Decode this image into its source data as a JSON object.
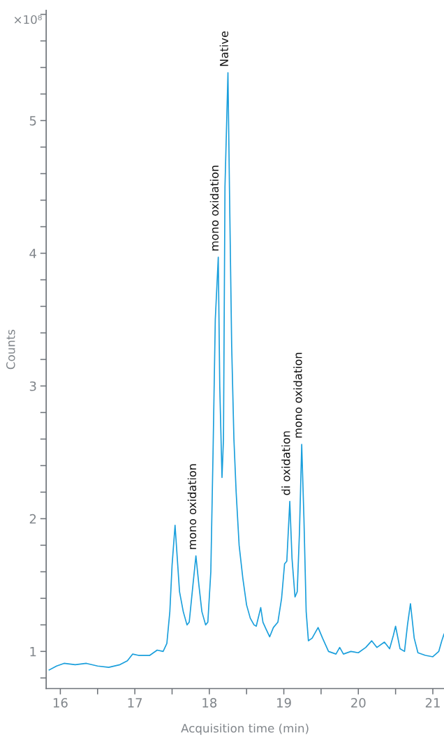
{
  "chart_data": {
    "type": "line",
    "xlabel": "Acquisition time (min)",
    "ylabel": "Counts",
    "xlim": [
      15.81,
      21.15
    ],
    "ylim": [
      0.72,
      5.83
    ],
    "xticks": [
      16,
      {
        "value": 16.5,
        "label": null
      },
      17,
      {
        "value": 17.5,
        "label": null
      },
      18,
      {
        "value": 18.5,
        "label": null
      },
      19,
      {
        "value": 19.5,
        "label": null
      },
      20,
      {
        "value": 20.5,
        "label": null
      },
      21
    ],
    "yticks": [
      {
        "value": 0.8,
        "label": null
      },
      1,
      {
        "value": 1.2,
        "label": null
      },
      {
        "value": 1.4,
        "label": null
      },
      {
        "value": 1.6,
        "label": null
      },
      {
        "value": 1.8,
        "label": null
      },
      2,
      {
        "value": 2.2,
        "label": null
      },
      {
        "value": 2.4,
        "label": null
      },
      {
        "value": 2.6,
        "label": null
      },
      {
        "value": 2.8,
        "label": null
      },
      3,
      {
        "value": 3.2,
        "label": null
      },
      {
        "value": 3.4,
        "label": null
      },
      {
        "value": 3.6,
        "label": null
      },
      {
        "value": 3.8,
        "label": null
      },
      4,
      {
        "value": 4.2,
        "label": null
      },
      {
        "value": 4.4,
        "label": null
      },
      {
        "value": 4.6,
        "label": null
      },
      {
        "value": 4.8,
        "label": null
      },
      5,
      {
        "value": 5.2,
        "label": null
      },
      {
        "value": 5.4,
        "label": null
      },
      {
        "value": 5.6,
        "label": null
      },
      {
        "value": 5.8,
        "label": null
      }
    ],
    "grid": false,
    "legend": false,
    "marker": "none",
    "line_style": "solid",
    "annotations": [
      "×10⁸",
      {
        "text": "mono oxidation",
        "x": 17.82,
        "y": 1.72
      },
      {
        "text": "mono oxidation",
        "x": 18.12,
        "y": 3.97
      },
      {
        "text": "Native",
        "x": 18.25,
        "y": 5.36
      },
      {
        "text": "di oxidation",
        "x": 19.08,
        "y": 2.13
      },
      {
        "text": "mono oxidation",
        "x": 19.24,
        "y": 2.56
      }
    ],
    "series": [
      {
        "color": "#1a9fdc",
        "x": [
          15.85,
          15.95,
          16.05,
          16.2,
          16.35,
          16.5,
          16.65,
          16.8,
          16.9,
          16.97,
          17.05,
          17.2,
          17.3,
          17.38,
          17.43,
          17.47,
          17.5,
          17.54,
          17.57,
          17.6,
          17.65,
          17.7,
          17.73,
          17.78,
          17.82,
          17.86,
          17.9,
          17.95,
          17.98,
          18.02,
          18.05,
          18.08,
          18.12,
          18.14,
          18.17,
          18.19,
          18.21,
          18.25,
          18.27,
          18.3,
          18.33,
          18.36,
          18.4,
          18.45,
          18.5,
          18.55,
          18.6,
          18.63,
          18.69,
          18.72,
          18.76,
          18.81,
          18.86,
          18.92,
          18.97,
          19.01,
          19.04,
          19.08,
          19.11,
          19.15,
          19.18,
          19.21,
          19.24,
          19.27,
          19.3,
          19.33,
          19.38,
          19.46,
          19.52,
          19.6,
          19.7,
          19.75,
          19.8,
          19.9,
          20.0,
          20.1,
          20.18,
          20.25,
          20.35,
          20.42,
          20.47,
          20.5,
          20.56,
          20.62,
          20.66,
          20.7,
          20.75,
          20.8,
          20.9,
          21.0,
          21.08,
          21.12,
          21.15
        ],
        "values": [
          0.86,
          0.89,
          0.91,
          0.9,
          0.91,
          0.89,
          0.88,
          0.9,
          0.93,
          0.98,
          0.97,
          0.97,
          1.01,
          1.0,
          1.06,
          1.3,
          1.65,
          1.95,
          1.7,
          1.45,
          1.3,
          1.2,
          1.22,
          1.5,
          1.72,
          1.5,
          1.3,
          1.2,
          1.22,
          1.6,
          2.5,
          3.5,
          3.97,
          3.0,
          2.31,
          2.6,
          4.5,
          5.36,
          4.5,
          3.3,
          2.6,
          2.2,
          1.8,
          1.55,
          1.35,
          1.25,
          1.2,
          1.19,
          1.33,
          1.22,
          1.17,
          1.11,
          1.18,
          1.22,
          1.4,
          1.66,
          1.68,
          2.13,
          1.7,
          1.41,
          1.45,
          1.9,
          2.56,
          2.0,
          1.3,
          1.08,
          1.1,
          1.18,
          1.1,
          1.0,
          0.98,
          1.03,
          0.98,
          1.0,
          0.99,
          1.03,
          1.08,
          1.03,
          1.07,
          1.02,
          1.12,
          1.19,
          1.02,
          1.0,
          1.2,
          1.36,
          1.1,
          0.99,
          0.97,
          0.96,
          1.0,
          1.08,
          1.13
        ]
      }
    ]
  }
}
